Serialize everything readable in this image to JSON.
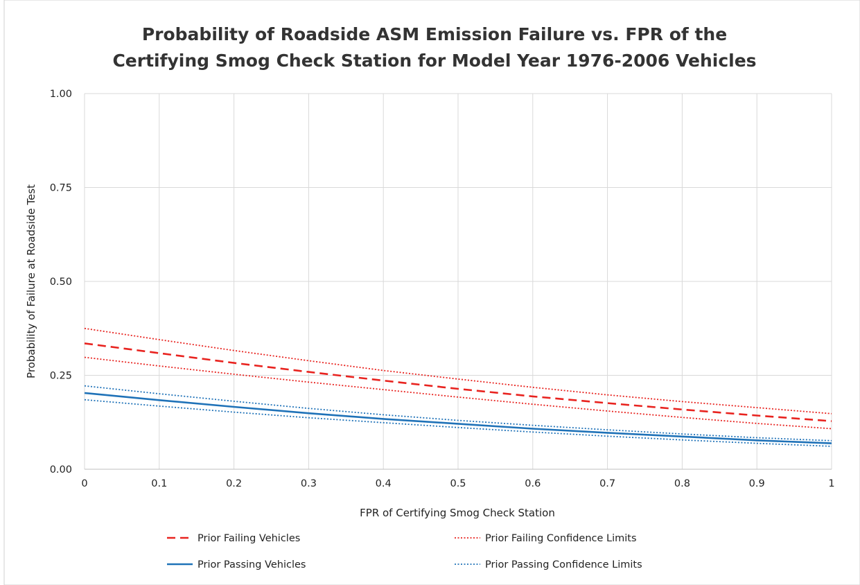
{
  "chart_data": {
    "type": "line",
    "title_line1": "Probability of Roadside ASM Emission Failure vs. FPR of the",
    "title_line2": "Certifying Smog Check Station for Model Year 1976-2006 Vehicles",
    "xlabel": "FPR of Certifying Smog Check Station",
    "ylabel": "Probability of Failure at Roadside Test",
    "xlim": [
      0,
      1
    ],
    "ylim": [
      0,
      1
    ],
    "x_ticks": [
      "0",
      "0.1",
      "0.2",
      "0.3",
      "0.4",
      "0.5",
      "0.6",
      "0.7",
      "0.8",
      "0.9",
      "1"
    ],
    "y_ticks": [
      "0.00",
      "0.25",
      "0.50",
      "0.75",
      "1.00"
    ],
    "grid": true,
    "legend_position": "bottom",
    "x": [
      0,
      0.1,
      0.2,
      0.3,
      0.4,
      0.5,
      0.6,
      0.7,
      0.8,
      0.9,
      1.0
    ],
    "series": [
      {
        "name": "Prior Failing Vehicles",
        "color": "#e8231f",
        "style": "dashed",
        "values": [
          0.335,
          0.309,
          0.283,
          0.259,
          0.236,
          0.214,
          0.194,
          0.176,
          0.159,
          0.143,
          0.128
        ]
      },
      {
        "name": "Prior Failing Confidence Limits",
        "color": "#e8231f",
        "style": "dotted",
        "values": [
          0.375,
          0.345,
          0.316,
          0.289,
          0.263,
          0.24,
          0.218,
          0.198,
          0.18,
          0.164,
          0.148
        ]
      },
      {
        "name": "",
        "color": "#e8231f",
        "style": "dotted",
        "legend": false,
        "values": [
          0.298,
          0.275,
          0.253,
          0.232,
          0.212,
          0.192,
          0.173,
          0.155,
          0.138,
          0.122,
          0.108
        ]
      },
      {
        "name": "Prior Passing Vehicles",
        "color": "#1f72b8",
        "style": "solid",
        "values": [
          0.203,
          0.184,
          0.166,
          0.149,
          0.134,
          0.121,
          0.108,
          0.097,
          0.087,
          0.077,
          0.069
        ]
      },
      {
        "name": "Prior Passing Confidence Limits",
        "color": "#1f72b8",
        "style": "dotted",
        "values": [
          0.222,
          0.201,
          0.181,
          0.162,
          0.145,
          0.13,
          0.117,
          0.105,
          0.094,
          0.084,
          0.076
        ]
      },
      {
        "name": "",
        "color": "#1f72b8",
        "style": "dotted",
        "legend": false,
        "values": [
          0.185,
          0.168,
          0.152,
          0.137,
          0.124,
          0.111,
          0.099,
          0.088,
          0.078,
          0.069,
          0.061
        ]
      }
    ]
  }
}
